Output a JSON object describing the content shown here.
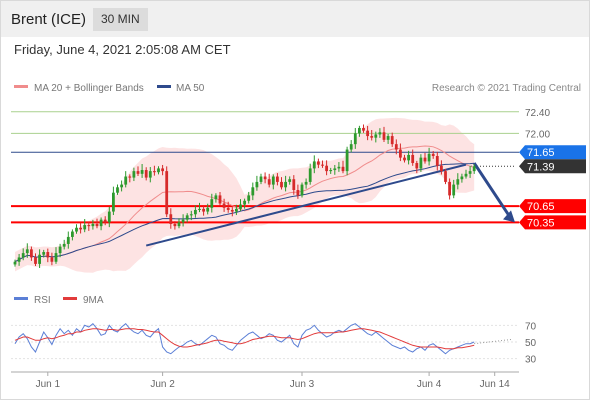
{
  "header": {
    "title": "Brent (ICE)",
    "timeframe": "30 MIN"
  },
  "datetime": "Friday, June 4, 2021 2:05:08 AM CET",
  "attribution": "Research © 2021 Trading Central",
  "legend": {
    "bb_label": "MA 20 + Bollinger Bands",
    "ma50_label": "MA 50",
    "rsi_label": "RSI",
    "rsi_ma_label": "9MA"
  },
  "colors": {
    "bull": "#2d9a2d",
    "bear": "#d62a2a",
    "ma20": "#f08c8c",
    "bollinger_fill": "#fde0e0",
    "ma50": "#2e4a8c",
    "support": "#ff0000",
    "resistance_line": "#a9d18e",
    "pivot_label": "#1a73e8",
    "last_price_label": "#333333",
    "rsi": "#5b7fd6",
    "rsi_ma": "#e23b3b"
  },
  "chart_data": {
    "type": "line",
    "ylim": [
      69.3,
      72.6
    ],
    "price_levels": [
      {
        "label": "72.40",
        "value": 72.4,
        "kind": "resistance2"
      },
      {
        "label": "72.00",
        "value": 72.0,
        "kind": "resistance1"
      },
      {
        "label": "71.65",
        "value": 71.65,
        "kind": "pivot"
      },
      {
        "label": "71.39",
        "value": 71.39,
        "kind": "last"
      },
      {
        "label": "70.65",
        "value": 70.65,
        "kind": "support1"
      },
      {
        "label": "70.35",
        "value": 70.35,
        "kind": "support2"
      }
    ],
    "x_ticks": [
      "Jun 1",
      "Jun 2",
      "Jun 3",
      "Jun 4",
      "Jun 14"
    ],
    "x_tick_index": [
      8,
      36,
      70,
      101,
      117
    ],
    "n_bars": 113,
    "close": [
      69.62,
      69.7,
      69.78,
      69.85,
      69.7,
      69.58,
      69.75,
      69.8,
      69.7,
      69.62,
      69.78,
      69.9,
      69.95,
      70.08,
      70.18,
      70.25,
      70.22,
      70.3,
      70.28,
      70.32,
      70.28,
      70.4,
      70.35,
      70.55,
      70.9,
      71.0,
      71.05,
      71.2,
      71.18,
      71.3,
      71.25,
      71.32,
      71.18,
      71.3,
      71.28,
      71.35,
      71.3,
      70.5,
      70.32,
      70.28,
      70.35,
      70.4,
      70.48,
      70.5,
      70.58,
      70.6,
      70.55,
      70.62,
      70.78,
      70.85,
      70.7,
      70.62,
      70.58,
      70.55,
      70.6,
      70.68,
      70.75,
      70.85,
      71.0,
      71.1,
      71.2,
      71.15,
      71.05,
      71.2,
      71.1,
      71.0,
      71.1,
      71.15,
      70.95,
      70.85,
      71.05,
      71.1,
      71.35,
      71.48,
      71.42,
      71.4,
      71.3,
      71.32,
      71.35,
      71.38,
      71.3,
      71.7,
      71.8,
      72.0,
      72.1,
      72.05,
      71.95,
      71.92,
      71.98,
      72.02,
      71.88,
      71.95,
      71.8,
      71.7,
      71.55,
      71.5,
      71.6,
      71.45,
      71.35,
      71.55,
      71.48,
      71.62,
      71.58,
      71.4,
      71.3,
      71.1,
      70.85,
      71.05,
      71.15,
      71.2,
      71.25,
      71.3,
      71.39
    ],
    "rsi": {
      "ylim": [
        20,
        80
      ],
      "ticks": [
        70,
        50,
        30
      ],
      "series": [
        {
          "name": "RSI",
          "values": [
            48,
            56,
            60,
            54,
            44,
            38,
            50,
            62,
            55,
            47,
            58,
            66,
            60,
            64,
            58,
            66,
            62,
            70,
            68,
            72,
            66,
            58,
            60,
            70,
            64,
            62,
            68,
            72,
            66,
            62,
            60,
            64,
            58,
            56,
            62,
            66,
            44,
            38,
            36,
            40,
            44,
            46,
            50,
            52,
            48,
            46,
            50,
            54,
            58,
            56,
            48,
            46,
            42,
            40,
            46,
            52,
            56,
            60,
            62,
            58,
            54,
            56,
            60,
            58,
            52,
            50,
            54,
            58,
            48,
            44,
            58,
            64,
            66,
            70,
            64,
            60,
            56,
            58,
            62,
            64,
            62,
            66,
            70,
            72,
            68,
            64,
            60,
            58,
            62,
            58,
            54,
            50,
            46,
            44,
            42,
            44,
            40,
            38,
            42,
            44,
            40,
            46,
            48,
            44,
            40,
            36,
            40,
            42,
            44,
            46,
            48,
            48,
            50
          ]
        },
        {
          "name": "9MA",
          "values": [
            52,
            54,
            56,
            56,
            54,
            52,
            52,
            54,
            55,
            54,
            55,
            57,
            58,
            60,
            60,
            62,
            62,
            64,
            65,
            66,
            66,
            65,
            64,
            65,
            65,
            64,
            65,
            66,
            66,
            66,
            65,
            65,
            64,
            63,
            62,
            62,
            58,
            54,
            50,
            47,
            45,
            44,
            44,
            45,
            46,
            47,
            48,
            49,
            51,
            52,
            52,
            51,
            50,
            49,
            48,
            48,
            49,
            51,
            53,
            54,
            55,
            56,
            57,
            57,
            56,
            55,
            55,
            55,
            54,
            53,
            54,
            56,
            58,
            60,
            61,
            61,
            61,
            61,
            61,
            62,
            62,
            63,
            64,
            65,
            66,
            66,
            65,
            64,
            63,
            62,
            60,
            58,
            56,
            54,
            52,
            50,
            48,
            46,
            45,
            44,
            44,
            44,
            44,
            44,
            43,
            42,
            42,
            42,
            43,
            43,
            44,
            45,
            46
          ]
        }
      ]
    }
  }
}
